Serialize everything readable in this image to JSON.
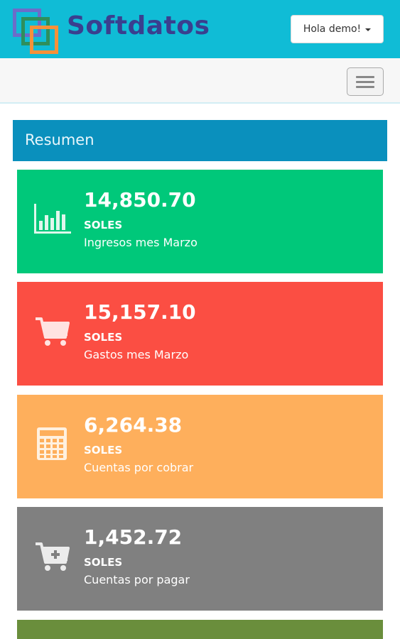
{
  "app": {
    "brand": "Softdatos"
  },
  "header": {
    "user_menu_label": "Hola demo!"
  },
  "section": {
    "title": "Resumen"
  },
  "cards": [
    {
      "value": "14,850.70",
      "unit": "SOLES",
      "label": "Ingresos mes Marzo",
      "icon": "bar-chart-icon",
      "color": "#00c87a"
    },
    {
      "value": "15,157.10",
      "unit": "SOLES",
      "label": "Gastos mes Marzo",
      "icon": "shopping-cart-icon",
      "color": "#fb4e43"
    },
    {
      "value": "6,264.38",
      "unit": "SOLES",
      "label": "Cuentas por cobrar",
      "icon": "calculator-icon",
      "color": "#feaf5c"
    },
    {
      "value": "1,452.72",
      "unit": "SOLES",
      "label": "Cuentas por pagar",
      "icon": "cart-plus-icon",
      "color": "#808080"
    }
  ],
  "colors": {
    "topbar": "#10bcd6",
    "section_header": "#0a90bd",
    "brand_text": "#3a3f8f",
    "partial_card": "#6a8e3c"
  }
}
